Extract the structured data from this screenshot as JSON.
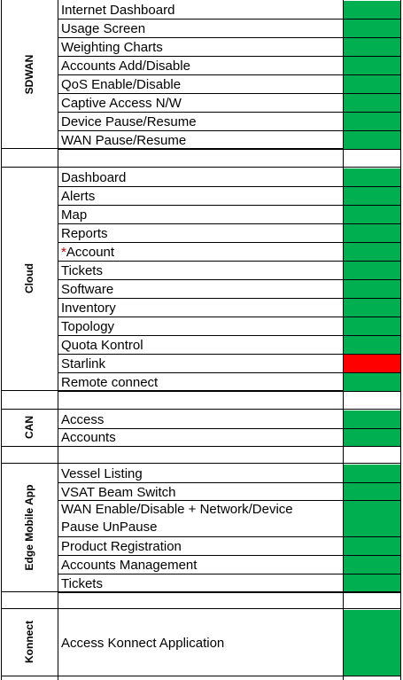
{
  "colors": {
    "ok": "#00b050",
    "fail": "#ff0000",
    "grid": "#000000",
    "background": "#ffffff"
  },
  "sections": [
    {
      "name": "SDWAN",
      "items": [
        {
          "label": "Internet Dashboard",
          "status": "green"
        },
        {
          "label": "Usage Screen",
          "status": "green"
        },
        {
          "label": "Weighting Charts",
          "status": "green"
        },
        {
          "label": "Accounts Add/Disable",
          "status": "green"
        },
        {
          "label": "QoS Enable/Disable",
          "status": "green"
        },
        {
          "label": "Captive Access N/W",
          "status": "green"
        },
        {
          "label": "Device Pause/Resume",
          "status": "green"
        },
        {
          "label": "WAN Pause/Resume",
          "status": "green"
        }
      ]
    },
    {
      "name": "Cloud",
      "items": [
        {
          "label": "Dashboard",
          "status": "green"
        },
        {
          "label": "Alerts",
          "status": "green"
        },
        {
          "label": "Map",
          "status": "green"
        },
        {
          "label": "Reports",
          "status": "green"
        },
        {
          "label": "Account",
          "prefix": "*",
          "status": "green"
        },
        {
          "label": "Tickets",
          "status": "green"
        },
        {
          "label": "Software",
          "status": "green"
        },
        {
          "label": "Inventory",
          "status": "green"
        },
        {
          "label": "Topology",
          "status": "green"
        },
        {
          "label": "Quota Kontrol",
          "status": "green"
        },
        {
          "label": "Starlink",
          "status": "red"
        },
        {
          "label": "Remote connect",
          "status": "green"
        }
      ]
    },
    {
      "name": "CAN",
      "items": [
        {
          "label": "Access",
          "status": "green"
        },
        {
          "label": "Accounts",
          "status": "green"
        }
      ]
    },
    {
      "name": "Edge Mobile App",
      "items": [
        {
          "label": "Vessel Listing",
          "status": "green"
        },
        {
          "label": "VSAT Beam Switch",
          "status": "green"
        },
        {
          "label": "WAN Enable/Disable + Network/Device",
          "label2": "Pause UnPause",
          "status": "green"
        },
        {
          "label": "Product Registration",
          "status": "green"
        },
        {
          "label": "Accounts Management",
          "status": "green"
        },
        {
          "label": "Tickets",
          "status": "green"
        }
      ]
    },
    {
      "name": "Konnect",
      "items": [
        {
          "label": "Access Konnect Application",
          "status": "green"
        }
      ]
    }
  ]
}
